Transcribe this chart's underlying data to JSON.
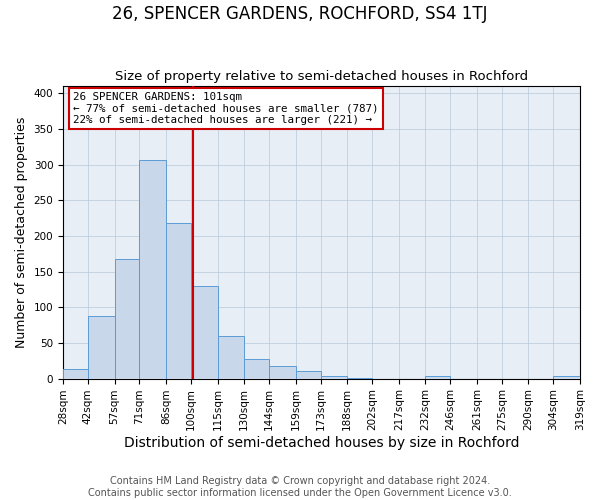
{
  "title": "26, SPENCER GARDENS, ROCHFORD, SS4 1TJ",
  "subtitle": "Size of property relative to semi-detached houses in Rochford",
  "xlabel": "Distribution of semi-detached houses by size in Rochford",
  "ylabel": "Number of semi-detached properties",
  "bin_edges": [
    28,
    42,
    57,
    71,
    86,
    100,
    115,
    130,
    144,
    159,
    173,
    188,
    202,
    217,
    232,
    246,
    261,
    275,
    290,
    304,
    319
  ],
  "bar_heights": [
    13,
    88,
    167,
    307,
    218,
    130,
    60,
    27,
    17,
    10,
    3,
    1,
    0,
    0,
    4,
    0,
    0,
    0,
    0,
    3
  ],
  "bar_color": "#c8d8ea",
  "bar_edgecolor": "#5b9bd5",
  "property_size": 101,
  "vline_color": "#cc0000",
  "ylim": [
    0,
    410
  ],
  "yticks": [
    0,
    50,
    100,
    150,
    200,
    250,
    300,
    350,
    400
  ],
  "annotation_title": "26 SPENCER GARDENS: 101sqm",
  "annotation_line1": "← 77% of semi-detached houses are smaller (787)",
  "annotation_line2": "22% of semi-detached houses are larger (221) →",
  "annotation_box_color": "#cc0000",
  "footer_line1": "Contains HM Land Registry data © Crown copyright and database right 2024.",
  "footer_line2": "Contains public sector information licensed under the Open Government Licence v3.0.",
  "plot_bg_color": "#e8eef6",
  "title_fontsize": 12,
  "subtitle_fontsize": 9.5,
  "xlabel_fontsize": 10,
  "ylabel_fontsize": 9,
  "tick_fontsize": 7.5,
  "footer_fontsize": 7
}
